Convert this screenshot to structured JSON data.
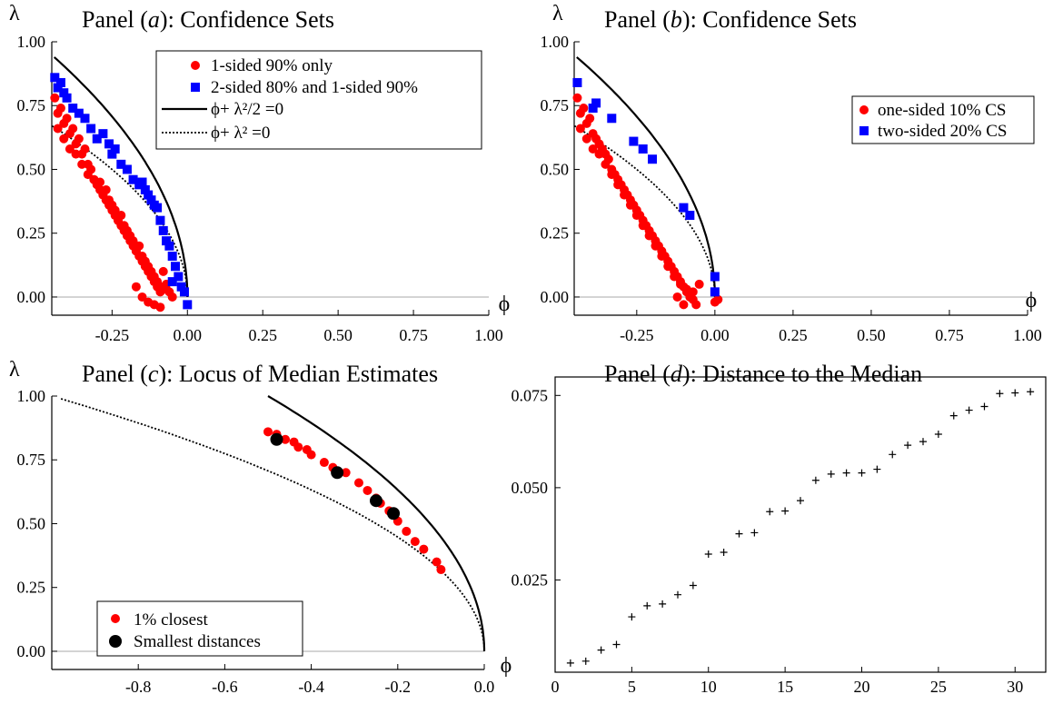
{
  "chart_data": [
    {
      "id": "a",
      "type": "scatter",
      "title": "Panel (a): Confidence Sets",
      "title_parts": {
        "pre": "Panel (",
        "letter": "a",
        "post": "): Confidence Sets"
      },
      "xlabel": "ϕ",
      "ylabel": "λ",
      "xlim": [
        -0.45,
        1.0
      ],
      "ylim": [
        -0.05,
        1.0
      ],
      "x_ticks": [
        "-0.25",
        "0.00",
        "0.25",
        "0.50",
        "0.75",
        "1.00"
      ],
      "y_ticks": [
        "0.00",
        "0.25",
        "0.50",
        "0.75",
        "1.00"
      ],
      "legend_position": "top-right",
      "legend": [
        "1-sided 90% only",
        "2-sided 80% and 1-sided 90%",
        "ϕ+ λ²/2 =0",
        "ϕ+ λ² =0"
      ],
      "curves": [
        "phi + lambda^2/2 = 0 (solid)",
        "phi + lambda^2 = 0 (dotted)"
      ],
      "series": [
        {
          "name": "1-sided 90% only",
          "color": "#ff0000",
          "marker": "circle",
          "x": [
            -0.44,
            -0.43,
            -0.42,
            -0.41,
            -0.4,
            -0.39,
            -0.38,
            -0.37,
            -0.36,
            -0.35,
            -0.34,
            -0.33,
            -0.32,
            -0.31,
            -0.3,
            -0.29,
            -0.28,
            -0.27,
            -0.26,
            -0.25,
            -0.24,
            -0.23,
            -0.22,
            -0.21,
            -0.2,
            -0.19,
            -0.18,
            -0.17,
            -0.16,
            -0.15,
            -0.14,
            -0.13,
            -0.12,
            -0.11,
            -0.1,
            -0.09,
            -0.08,
            -0.07,
            -0.06,
            -0.05,
            -0.43,
            -0.41,
            -0.39,
            -0.37,
            -0.35,
            -0.33,
            -0.31,
            -0.29,
            -0.27,
            -0.25,
            -0.23,
            -0.21,
            -0.19,
            -0.17,
            -0.15,
            -0.13,
            -0.11,
            -0.09,
            -0.07,
            -0.28,
            -0.26,
            -0.24,
            -0.22,
            -0.2,
            -0.18,
            -0.16,
            -0.14,
            -0.12,
            -0.1,
            -0.17,
            -0.15,
            -0.13,
            -0.11,
            -0.09
          ],
          "y": [
            0.78,
            0.72,
            0.74,
            0.68,
            0.7,
            0.64,
            0.66,
            0.6,
            0.62,
            0.56,
            0.58,
            0.52,
            0.5,
            0.46,
            0.44,
            0.45,
            0.4,
            0.42,
            0.38,
            0.36,
            0.34,
            0.3,
            0.32,
            0.28,
            0.26,
            0.24,
            0.22,
            0.18,
            0.2,
            0.16,
            0.14,
            0.12,
            0.1,
            0.08,
            0.06,
            0.04,
            0.1,
            0.05,
            0.02,
            0.0,
            0.66,
            0.62,
            0.58,
            0.56,
            0.52,
            0.48,
            0.46,
            0.42,
            0.38,
            0.34,
            0.3,
            0.26,
            0.22,
            0.18,
            0.14,
            0.1,
            0.06,
            0.02,
            0.03,
            0.4,
            0.36,
            0.32,
            0.28,
            0.24,
            0.2,
            0.16,
            0.12,
            0.08,
            0.04,
            0.04,
            0.0,
            -0.02,
            -0.03,
            -0.04
          ]
        },
        {
          "name": "2-sided 80% and 1-sided 90%",
          "color": "#0000ff",
          "marker": "square",
          "x": [
            -0.44,
            -0.43,
            -0.42,
            -0.41,
            -0.4,
            -0.38,
            -0.36,
            -0.34,
            -0.32,
            -0.3,
            -0.28,
            -0.26,
            -0.25,
            -0.24,
            -0.22,
            -0.2,
            -0.18,
            -0.16,
            -0.14,
            -0.12,
            -0.1,
            -0.09,
            -0.08,
            -0.06,
            -0.05,
            -0.04,
            -0.03,
            -0.02,
            -0.01,
            0.0,
            -0.15,
            -0.13,
            -0.11,
            -0.07,
            -0.05
          ],
          "y": [
            0.86,
            0.82,
            0.84,
            0.8,
            0.78,
            0.74,
            0.72,
            0.7,
            0.66,
            0.62,
            0.64,
            0.6,
            0.56,
            0.58,
            0.52,
            0.5,
            0.46,
            0.44,
            0.42,
            0.38,
            0.35,
            0.3,
            0.26,
            0.2,
            0.16,
            0.12,
            0.08,
            0.04,
            0.02,
            -0.03,
            0.45,
            0.4,
            0.36,
            0.22,
            0.06
          ]
        }
      ]
    },
    {
      "id": "b",
      "type": "scatter",
      "title": "Panel (b): Confidence Sets",
      "title_parts": {
        "pre": "Panel (",
        "letter": "b",
        "post": "): Confidence Sets"
      },
      "xlabel": "ϕ",
      "ylabel": "λ",
      "xlim": [
        -0.45,
        1.0
      ],
      "ylim": [
        -0.05,
        1.0
      ],
      "x_ticks": [
        "-0.25",
        "0.00",
        "0.25",
        "0.50",
        "0.75",
        "1.00"
      ],
      "y_ticks": [
        "0.00",
        "0.25",
        "0.50",
        "0.75",
        "1.00"
      ],
      "legend_position": "top-right",
      "legend": [
        "one-sided 10% CS",
        "two-sided 20% CS"
      ],
      "series": [
        {
          "name": "one-sided 10% CS",
          "color": "#ff0000",
          "marker": "circle",
          "x": [
            -0.44,
            -0.43,
            -0.42,
            -0.41,
            -0.4,
            -0.39,
            -0.38,
            -0.37,
            -0.36,
            -0.35,
            -0.34,
            -0.33,
            -0.32,
            -0.31,
            -0.3,
            -0.29,
            -0.28,
            -0.27,
            -0.26,
            -0.25,
            -0.24,
            -0.23,
            -0.22,
            -0.21,
            -0.2,
            -0.19,
            -0.18,
            -0.17,
            -0.16,
            -0.15,
            -0.14,
            -0.13,
            -0.12,
            -0.11,
            -0.1,
            -0.09,
            -0.08,
            -0.07,
            -0.06,
            -0.43,
            -0.41,
            -0.39,
            -0.37,
            -0.35,
            -0.33,
            -0.31,
            -0.29,
            -0.27,
            -0.25,
            -0.23,
            -0.21,
            -0.19,
            -0.17,
            -0.15,
            -0.13,
            -0.11,
            -0.09,
            -0.07,
            -0.05,
            0.0,
            0.01,
            -0.1,
            -0.12
          ],
          "y": [
            0.78,
            0.72,
            0.74,
            0.68,
            0.7,
            0.64,
            0.62,
            0.6,
            0.58,
            0.56,
            0.54,
            0.5,
            0.48,
            0.46,
            0.44,
            0.42,
            0.4,
            0.38,
            0.36,
            0.34,
            0.32,
            0.3,
            0.28,
            0.26,
            0.24,
            0.22,
            0.2,
            0.18,
            0.16,
            0.14,
            0.12,
            0.1,
            0.08,
            0.06,
            0.04,
            0.02,
            0.0,
            -0.01,
            -0.03,
            0.66,
            0.62,
            0.58,
            0.56,
            0.52,
            0.48,
            0.44,
            0.4,
            0.36,
            0.32,
            0.28,
            0.24,
            0.2,
            0.16,
            0.12,
            0.08,
            0.05,
            0.03,
            0.02,
            0.05,
            -0.02,
            -0.01,
            -0.03,
            0.0
          ]
        },
        {
          "name": "two-sided 20% CS",
          "color": "#0000ff",
          "marker": "square",
          "x": [
            -0.44,
            -0.39,
            -0.38,
            -0.33,
            -0.26,
            -0.23,
            -0.2,
            -0.1,
            -0.08,
            0.0,
            0.0
          ],
          "y": [
            0.84,
            0.74,
            0.76,
            0.7,
            0.61,
            0.58,
            0.54,
            0.35,
            0.32,
            0.08,
            0.02
          ]
        }
      ]
    },
    {
      "id": "c",
      "type": "scatter",
      "title": "Panel (c): Locus of Median Estimates",
      "title_parts": {
        "pre": "Panel (",
        "letter": "c",
        "post": "): Locus of Median Estimates"
      },
      "xlabel": "ϕ",
      "ylabel": "λ",
      "xlim": [
        -1.0,
        0.0
      ],
      "ylim": [
        -0.05,
        1.0
      ],
      "x_ticks": [
        "-0.8",
        "-0.6",
        "-0.4",
        "-0.2",
        "0.0"
      ],
      "y_ticks": [
        "0.00",
        "0.25",
        "0.50",
        "0.75",
        "1.00"
      ],
      "legend_position": "bottom-left",
      "legend": [
        "1% closest",
        "Smallest distances"
      ],
      "curves": [
        "phi + lambda^2/2 = 0 (solid)",
        "phi + lambda^2 = 0 (dotted)"
      ],
      "series": [
        {
          "name": "1% closest",
          "color": "#ff0000",
          "marker": "circle",
          "x": [
            -0.5,
            -0.48,
            -0.46,
            -0.44,
            -0.43,
            -0.41,
            -0.4,
            -0.37,
            -0.35,
            -0.32,
            -0.29,
            -0.27,
            -0.25,
            -0.24,
            -0.22,
            -0.2,
            -0.18,
            -0.16,
            -0.14,
            -0.11,
            -0.1
          ],
          "y": [
            0.86,
            0.85,
            0.83,
            0.82,
            0.8,
            0.79,
            0.77,
            0.74,
            0.72,
            0.7,
            0.66,
            0.63,
            0.6,
            0.58,
            0.55,
            0.51,
            0.47,
            0.43,
            0.4,
            0.35,
            0.32
          ]
        },
        {
          "name": "Smallest distances",
          "color": "#000000",
          "marker": "circle",
          "x": [
            -0.48,
            -0.34,
            -0.25,
            -0.21
          ],
          "y": [
            0.83,
            0.7,
            0.59,
            0.54
          ]
        }
      ]
    },
    {
      "id": "d",
      "type": "scatter",
      "title": "Panel (d): Distance to the Median",
      "title_parts": {
        "pre": "Panel (",
        "letter": "d",
        "post": "): Distance to the Median"
      },
      "xlim": [
        0,
        32
      ],
      "ylim": [
        0.0,
        0.08
      ],
      "x_ticks": [
        "0",
        "5",
        "10",
        "15",
        "20",
        "25",
        "30"
      ],
      "y_ticks": [
        "0.025",
        "0.050",
        "0.075"
      ],
      "series": [
        {
          "name": "",
          "color": "#000000",
          "marker": "plus",
          "x": [
            1,
            2,
            3,
            4,
            5,
            6,
            7,
            8,
            9,
            10,
            11,
            12,
            13,
            14,
            15,
            16,
            17,
            18,
            19,
            20,
            21,
            22,
            23,
            24,
            25,
            26,
            27,
            28,
            29,
            30,
            31
          ],
          "y": [
            0.0025,
            0.003,
            0.006,
            0.0075,
            0.015,
            0.018,
            0.0185,
            0.021,
            0.0235,
            0.032,
            0.0325,
            0.0375,
            0.0378,
            0.0435,
            0.0437,
            0.0465,
            0.052,
            0.0537,
            0.054,
            0.054,
            0.055,
            0.059,
            0.0615,
            0.0625,
            0.0645,
            0.0695,
            0.071,
            0.072,
            0.0755,
            0.0757,
            0.076
          ]
        }
      ]
    }
  ]
}
